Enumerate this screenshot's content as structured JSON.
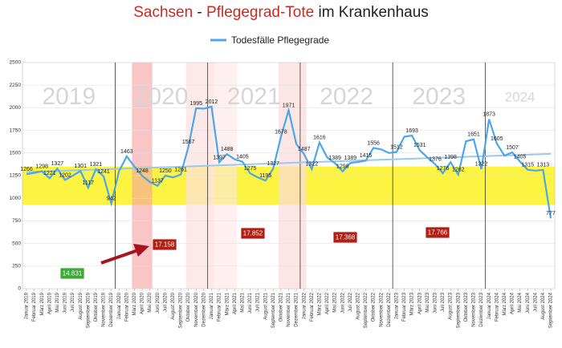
{
  "chart_data": {
    "type": "line",
    "title_parts": [
      {
        "text": "Sachsen",
        "color": "#d0281e"
      },
      {
        "text": " - ",
        "color": "#222222"
      },
      {
        "text": "Pflegegrad-Tote",
        "color": "#d0281e"
      },
      {
        "text": " im Krankenhaus",
        "color": "#222222"
      }
    ],
    "categories": [
      "Januar 2019",
      "Februar 2019",
      "März 2019",
      "April 2019",
      "Mai 2019",
      "Juni 2019",
      "Juli 2019",
      "August 2019",
      "September 2019",
      "Oktober 2019",
      "November 2019",
      "Dezember 2019",
      "Januar 2020",
      "Februar 2020",
      "März 2020",
      "April 2020",
      "Mai 2020",
      "Juni 2020",
      "Juli 2020",
      "August 2020",
      "September 2020",
      "Oktober 2020",
      "November 2020",
      "Dezember 2020",
      "Januar 2021",
      "Februar 2021",
      "März 2021",
      "April 2021",
      "Mai 2021",
      "Juni 2021",
      "Juli 2021",
      "August 2021",
      "September 2021",
      "Oktober 2021",
      "November 2021",
      "Dezember 2021",
      "Januar 2022",
      "Februar 2022",
      "März 2022",
      "April 2022",
      "Mai 2022",
      "Juni 2022",
      "Juli 2022",
      "August 2022",
      "September 2022",
      "Oktober 2022",
      "November 2022",
      "Dezember 2022",
      "Januar 2023",
      "Februar 2023",
      "März 2023",
      "April 2023",
      "Mai 2023",
      "Juni 2023",
      "Juli 2023",
      "August 2023",
      "September 2023",
      "Oktober 2023",
      "November 2023",
      "Dezember 2023",
      "Januar 2024",
      "Februar 2024",
      "März 2024",
      "April 2024",
      "Mai 2024",
      "Juni 2024",
      "Juli 2024",
      "August 2024",
      "September 2024"
    ],
    "series": [
      {
        "name": "Todesfälle Pflegegrade",
        "color": "#4da6e8",
        "values": [
          1266,
          1280,
          1298,
          1221,
          1327,
          1202,
          1250,
          1301,
          1117,
          1321,
          1241,
          942,
          1300,
          1463,
          1350,
          1248,
          1180,
          1137,
          1250,
          1230,
          1261,
          1567,
          1995,
          1990,
          2012,
          1397,
          1488,
          1430,
          1405,
          1275,
          1230,
          1195,
          1327,
          1678,
          1971,
          1600,
          1487,
          1322,
          1616,
          1450,
          1389,
          1298,
          1389,
          1400,
          1415,
          1556,
          1540,
          1500,
          1512,
          1680,
          1693,
          1531,
          1450,
          1376,
          1276,
          1398,
          1262,
          1630,
          1651,
          1322,
          1873,
          1605,
          1470,
          1507,
          1405,
          1315,
          1305,
          1313,
          777
        ],
        "value_labels": [
          "1266",
          null,
          "1298",
          "1221",
          "1327",
          "1202",
          null,
          "1301",
          "1117",
          "1321",
          "1241",
          "942",
          null,
          "1463",
          null,
          "1248",
          null,
          "1137",
          "1250",
          null,
          "1261",
          "1567",
          "1995",
          null,
          "2012",
          "1397",
          "1488",
          null,
          "1405",
          "1275",
          null,
          "1195",
          "1327",
          "1678",
          "1971",
          null,
          "1487",
          "1322",
          "1616",
          null,
          "1389",
          "1298",
          "1389",
          null,
          "1415",
          "1556",
          null,
          null,
          "1512",
          null,
          "1693",
          "1531",
          null,
          "1376",
          "1276",
          "1398",
          "1262",
          null,
          "1651",
          "1322",
          "1873",
          "1605",
          null,
          "1507",
          "1405",
          "1315",
          null,
          "1313",
          "777"
        ]
      }
    ],
    "trend_values": [
      1290,
      1490
    ],
    "trend_color": "#9cc8ea",
    "ylim": [
      0,
      2500
    ],
    "yticks": [
      0,
      250,
      500,
      750,
      1000,
      1250,
      1500,
      1750,
      2000,
      2250,
      2500
    ],
    "grid": true,
    "year_labels": [
      "2019",
      "2020",
      "2021",
      "2022",
      "2023",
      "2024"
    ],
    "annotations": [
      {
        "text": "14.831",
        "color": "#3aaa35"
      },
      {
        "text": "17.158",
        "color": "#b01e14"
      },
      {
        "text": "17.852",
        "color": "#b01e14"
      },
      {
        "text": "17.368",
        "color": "#b01e14"
      },
      {
        "text": "17.766",
        "color": "#b01e14"
      }
    ]
  }
}
